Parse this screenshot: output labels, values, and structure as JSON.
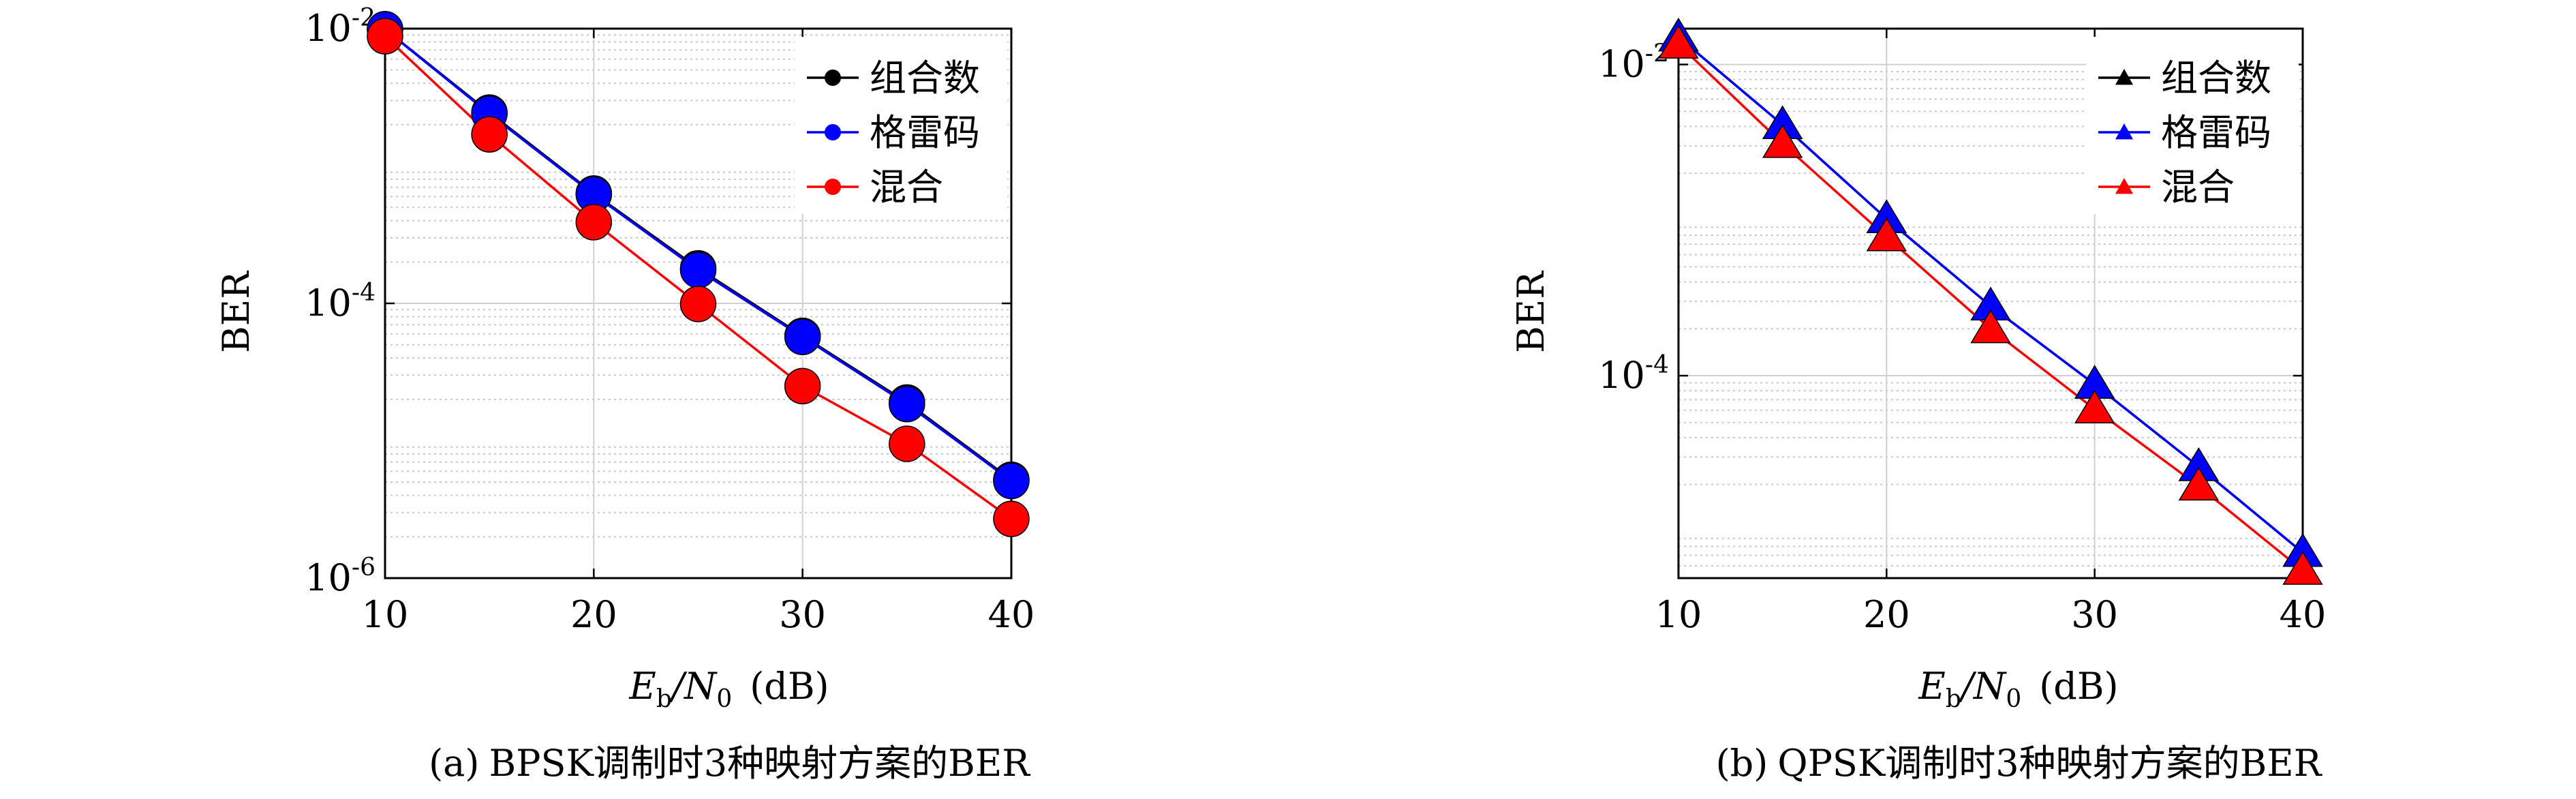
{
  "figure": {
    "panels": [
      {
        "caption_tag": "(a)",
        "caption_text": "BPSK调制时3种映射方案的BER",
        "xlabel_main": "E",
        "xlabel_sub1": "b",
        "xlabel_mid": "/N",
        "xlabel_sub2": "0",
        "xlabel_unit": "(dB)",
        "ylabel": "BER"
      },
      {
        "caption_tag": "(b)",
        "caption_text": "QPSK调制时3种映射方案的BER",
        "xlabel_main": "E",
        "xlabel_sub1": "b",
        "xlabel_mid": "/N",
        "xlabel_sub2": "0",
        "xlabel_unit": "(dB)",
        "ylabel": "BER"
      }
    ]
  },
  "chart_data": [
    {
      "type": "line",
      "marker": "circle",
      "ylabel": "BER",
      "yscale": "log",
      "xlim": [
        10,
        40
      ],
      "ylim": [
        1e-06,
        0.01
      ],
      "xticks": [
        10,
        20,
        30,
        40
      ],
      "xtick_labels": [
        "10",
        "20",
        "30",
        "40"
      ],
      "yticks": [
        0.01,
        0.0001,
        1e-06
      ],
      "ytick_labels": [
        [
          "10",
          "-2"
        ],
        [
          "10",
          "-4"
        ],
        [
          "10",
          "-6"
        ]
      ],
      "grid": true,
      "legend_position": "top-right",
      "x": [
        10,
        15,
        20,
        25,
        30,
        35,
        40
      ],
      "series": [
        {
          "name": "组合数",
          "color": "#000000",
          "values": [
            0.0099,
            0.00245,
            0.00063,
            0.00018,
            5.8e-05,
            1.9e-05,
            5.2e-06
          ]
        },
        {
          "name": "格雷码",
          "color": "#0000ff",
          "values": [
            0.0099,
            0.0024,
            0.00062,
            0.000175,
            5.7e-05,
            1.85e-05,
            5.1e-06
          ]
        },
        {
          "name": "混合",
          "color": "#ff0000",
          "values": [
            0.0088,
            0.0017,
            0.00039,
            9.9e-05,
            2.5e-05,
            9.5e-06,
            2.7e-06
          ]
        }
      ]
    },
    {
      "type": "line",
      "marker": "triangle",
      "ylabel": "BER",
      "yscale": "log",
      "xlim": [
        10,
        40
      ],
      "ylim": [
        5e-06,
        0.017
      ],
      "xticks": [
        10,
        20,
        30,
        40
      ],
      "xtick_labels": [
        "10",
        "20",
        "30",
        "40"
      ],
      "yticks": [
        0.01,
        0.0001
      ],
      "ytick_labels": [
        [
          "10",
          "-2"
        ],
        [
          "10",
          "-4"
        ]
      ],
      "grid": true,
      "legend_position": "top-right",
      "x": [
        10,
        15,
        20,
        25,
        30,
        35,
        40
      ],
      "series": [
        {
          "name": "组合数",
          "color": "#000000",
          "values": [
            0.015,
            0.0041,
            0.00102,
            0.00028,
            8.8e-05,
            2.6e-05,
            7.3e-06
          ]
        },
        {
          "name": "格雷码",
          "color": "#0000ff",
          "values": [
            0.015,
            0.0041,
            0.00102,
            0.00028,
            8.8e-05,
            2.6e-05,
            7.3e-06
          ]
        },
        {
          "name": "混合",
          "color": "#ff0000",
          "values": [
            0.0135,
            0.0031,
            0.00078,
            0.0002,
            6.1e-05,
            1.95e-05,
            5.6e-06
          ]
        }
      ]
    }
  ]
}
